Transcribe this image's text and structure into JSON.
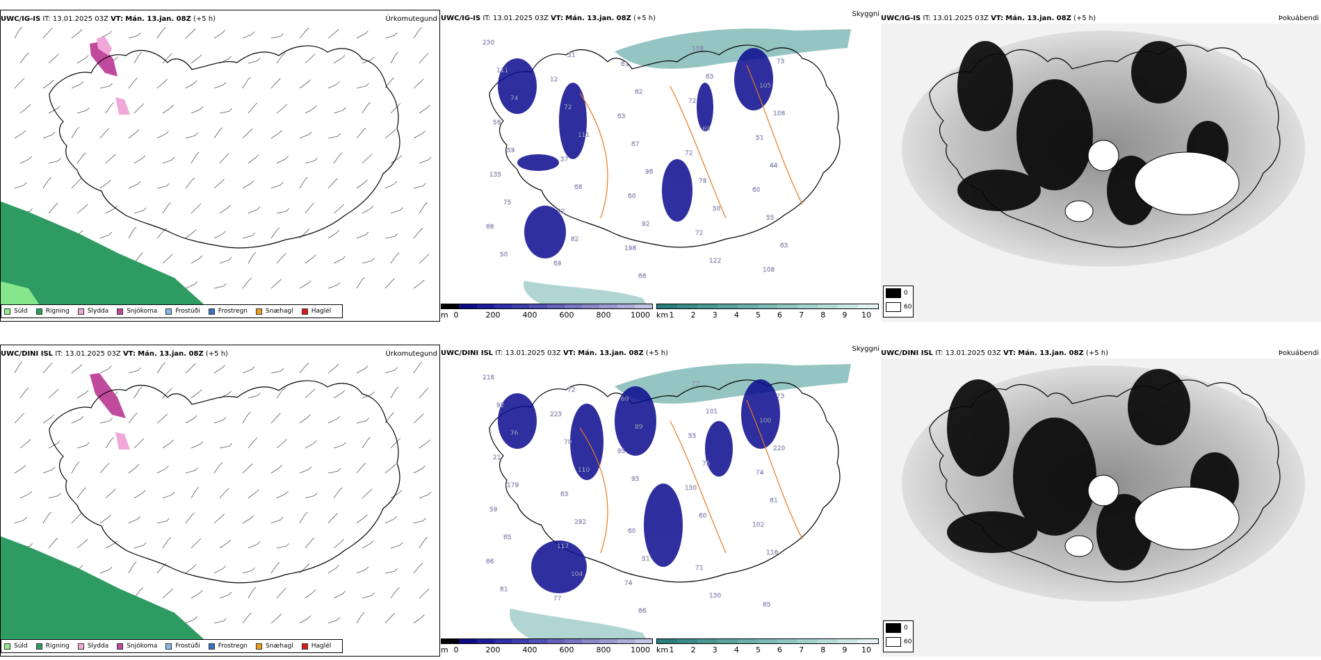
{
  "colors": {
    "rain": "#2e9b63",
    "drizzle": "#90ee90",
    "sleet": "#f0a8d8",
    "snow": "#c04a9c",
    "freezing_drizzle": "#87b8e8",
    "freezing_rain": "#3573c2",
    "snow_pellets": "#f0a020",
    "hail": "#e01818",
    "ceiling_dark": "#0a0a8e",
    "visibility_teal": "#3d9690",
    "coast": "#000000",
    "rivers": "#e67a22",
    "lakes": "#5a6ed8",
    "land_fill": "#f2e2d4"
  },
  "rows": [
    {
      "model": "UWC/IG-IS",
      "init_label": "IT:",
      "init_value": "13.01.2025 03Z",
      "valid_label": "VT:",
      "valid_value": "Mán. 13.jan. 08Z",
      "lead": "(+5 h)",
      "precip_title": "Úrkomutegund",
      "vis_title": "Skyggni",
      "cloud_title": "Þokuábendi",
      "ceiling_labels": [
        "230",
        "12",
        "63",
        "72",
        "60",
        "88",
        "69",
        "61",
        "72",
        "51",
        "135",
        "92",
        "198",
        "108",
        "105",
        "58",
        "37",
        "60",
        "72",
        "108",
        "111",
        "72",
        "87",
        "79",
        "55",
        "50",
        "51",
        "82",
        "69",
        "44",
        "75",
        "82",
        "88",
        "63",
        "108",
        "59",
        "68",
        "92",
        "122",
        "73",
        "74",
        "111",
        "96",
        "50",
        "63"
      ]
    },
    {
      "model": "UWC/DINI ISL",
      "init_label": "IT:",
      "init_value": "13.01.2025 03Z",
      "valid_label": "VT:",
      "valid_value": "Mán. 13.jan. 08Z",
      "lead": "(+5 h)",
      "precip_title": "Úrkomutegund",
      "vis_title": "Skyggni",
      "cloud_title": "Þokuábendi",
      "ceiling_labels": [
        "216",
        "223",
        "95",
        "130",
        "102",
        "86",
        "77",
        "69",
        "55",
        "74",
        "59",
        "117",
        "74",
        "77",
        "100",
        "21",
        "83",
        "60",
        "71",
        "85",
        "92",
        "70",
        "93",
        "60",
        "118",
        "81",
        "72",
        "89",
        "75",
        "81",
        "85",
        "104",
        "86",
        "101",
        "220",
        "179",
        "292",
        "51",
        "130",
        "73",
        "76",
        "110"
      ]
    }
  ],
  "precip_legend": [
    {
      "label": "Súld",
      "color": "#90ee90"
    },
    {
      "label": "Rigning",
      "color": "#2e9b63"
    },
    {
      "label": "Slydda",
      "color": "#f0a8d8"
    },
    {
      "label": "Snjókoma",
      "color": "#c04a9c"
    },
    {
      "label": "Frostúði",
      "color": "#87b8e8"
    },
    {
      "label": "Frostregn",
      "color": "#3573c2"
    },
    {
      "label": "Snæhagl",
      "color": "#f0a020"
    },
    {
      "label": "Haglél",
      "color": "#e01818"
    }
  ],
  "ceiling_scale": {
    "unit": "m",
    "ticks": [
      "0",
      "200",
      "400",
      "600",
      "800",
      "1000"
    ],
    "colors": [
      "#000000",
      "#0c0c84",
      "#1d1d9a",
      "#2e2ea8",
      "#3d3dae",
      "#5050b4",
      "#6363ba",
      "#7676c2",
      "#8888c8",
      "#9a9ad0",
      "#aeaed8",
      "#c4c4e2"
    ]
  },
  "visibility_scale": {
    "unit": "km",
    "ticks": [
      "1",
      "2",
      "3",
      "4",
      "5",
      "6",
      "7",
      "8",
      "9",
      "10"
    ],
    "colors": [
      "#2a7f7a",
      "#3a8c86",
      "#4a9892",
      "#5aa39e",
      "#6aafaa",
      "#7cbab6",
      "#8ec6c2",
      "#a2d2ce",
      "#b6dcda",
      "#cce8e6",
      "#e4f4f2"
    ]
  },
  "cloud_legend": [
    {
      "label": "0",
      "color": "#000000"
    },
    {
      "label": "60",
      "color": "#ffffff"
    }
  ]
}
